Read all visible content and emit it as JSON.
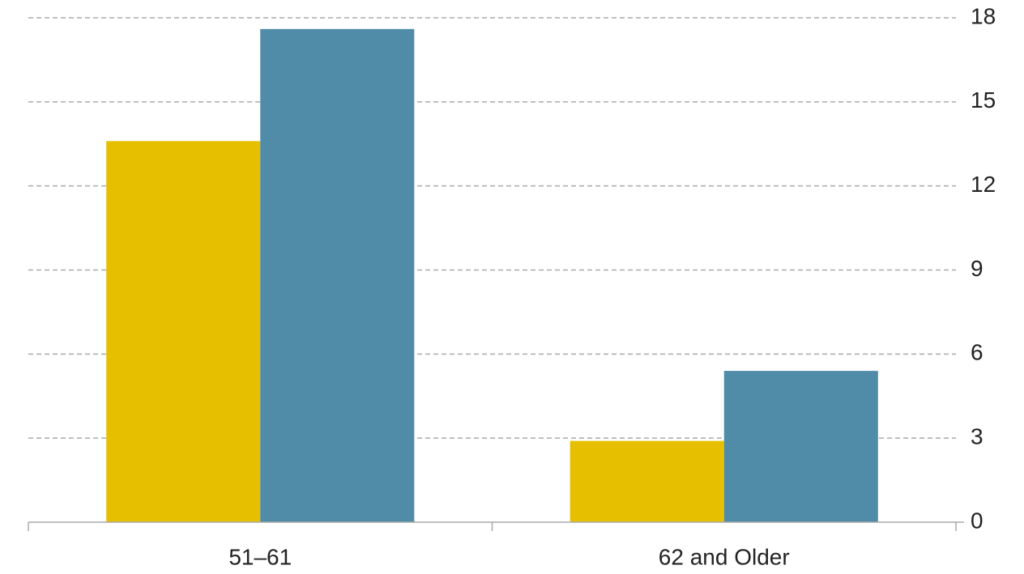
{
  "chart_data": {
    "type": "bar",
    "categories": [
      "51–61",
      "62 and Older"
    ],
    "series": [
      {
        "color": "#e6c000",
        "values": [
          13.6,
          2.9
        ]
      },
      {
        "color": "#508ca8",
        "values": [
          17.6,
          5.4
        ]
      }
    ],
    "ylim": [
      0,
      18
    ],
    "yticks": [
      0,
      3,
      6,
      9,
      12,
      15,
      18
    ],
    "grid": true,
    "y_axis_side": "right"
  }
}
